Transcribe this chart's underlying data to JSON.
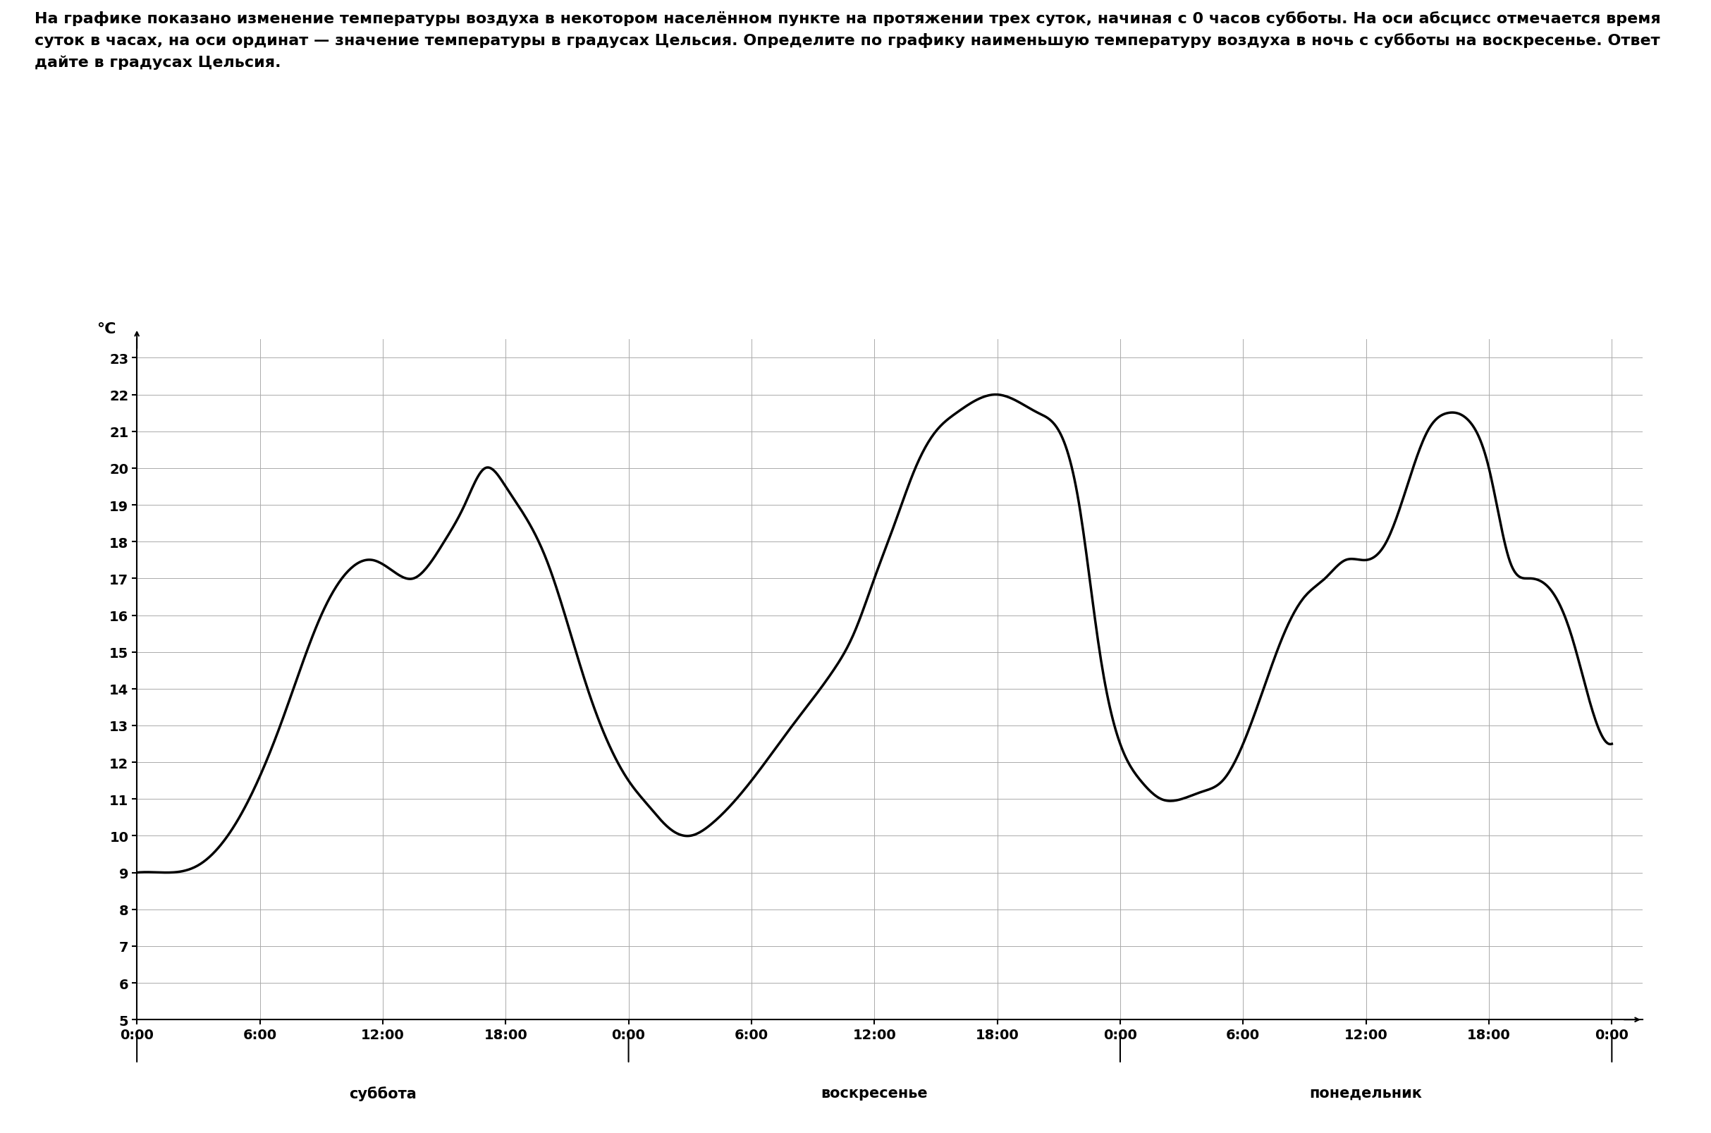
{
  "text_block": "На графике показано изменение температуры воздуха в некотором населённом пункте на протяжении трех суток, начиная с 0 часов субботы. На оси абсцисс отмечается время суток в часах, на оси ординат — значение температуры в градусах Цельсия. Определите по графику наименьшую температуру воздуха в ночь с субботы на воскресенье. Ответ дайте в градусах Цельсия.",
  "ylabel": "°C",
  "ylim_min": 5,
  "ylim_max": 23,
  "yticks": [
    5,
    6,
    7,
    8,
    9,
    10,
    11,
    12,
    13,
    14,
    15,
    16,
    17,
    18,
    19,
    20,
    21,
    22,
    23
  ],
  "xlim_min": 0,
  "xlim_max": 72,
  "xtick_positions": [
    0,
    6,
    12,
    18,
    24,
    30,
    36,
    42,
    48,
    54,
    60,
    66,
    72
  ],
  "xtick_labels": [
    "0:00",
    "6:00",
    "12:00",
    "18:00",
    "0:00",
    "6:00",
    "12:00",
    "18:00",
    "0:00",
    "6:00",
    "12:00",
    "18:00",
    "0:00"
  ],
  "day_labels": [
    "суббота",
    "воскресенье",
    "понедельник"
  ],
  "day_centers": [
    12,
    36,
    60
  ],
  "curve_x": [
    0,
    1.5,
    3,
    5,
    7,
    9,
    10.5,
    11.5,
    12.5,
    13.5,
    14,
    15,
    16,
    17,
    18,
    20,
    22,
    24,
    25,
    26,
    27,
    28,
    30,
    32,
    34,
    35,
    36,
    37,
    38,
    39,
    40,
    42,
    44,
    46,
    47,
    48,
    49,
    50,
    51,
    52,
    53,
    54,
    55,
    56,
    57,
    58,
    59,
    60,
    61,
    62,
    63,
    64,
    65,
    66,
    67,
    68,
    69,
    70,
    71,
    72
  ],
  "curve_y": [
    9,
    9.0,
    9.2,
    10.5,
    13.0,
    16.0,
    17.3,
    17.5,
    17.2,
    17.0,
    17.2,
    18.0,
    19.0,
    20.0,
    19.5,
    17.5,
    14.0,
    11.5,
    10.8,
    10.2,
    10.0,
    10.3,
    11.5,
    13.0,
    14.5,
    15.5,
    17.0,
    18.5,
    20.0,
    21.0,
    21.5,
    22.0,
    21.5,
    19.0,
    15.0,
    12.5,
    11.5,
    11.0,
    11.0,
    11.2,
    11.5,
    12.5,
    14.0,
    15.5,
    16.5,
    17.0,
    17.5,
    17.5,
    18.0,
    19.5,
    21.0,
    21.5,
    21.3,
    20.0,
    17.5,
    17.0,
    16.7,
    15.5,
    13.5,
    12.5
  ],
  "line_color": "#000000",
  "line_width": 2.5,
  "background_color": "#ffffff",
  "grid_color": "#aaaaaa",
  "text_fontsize": 16,
  "axis_fontsize": 14,
  "day_label_fontsize": 15
}
